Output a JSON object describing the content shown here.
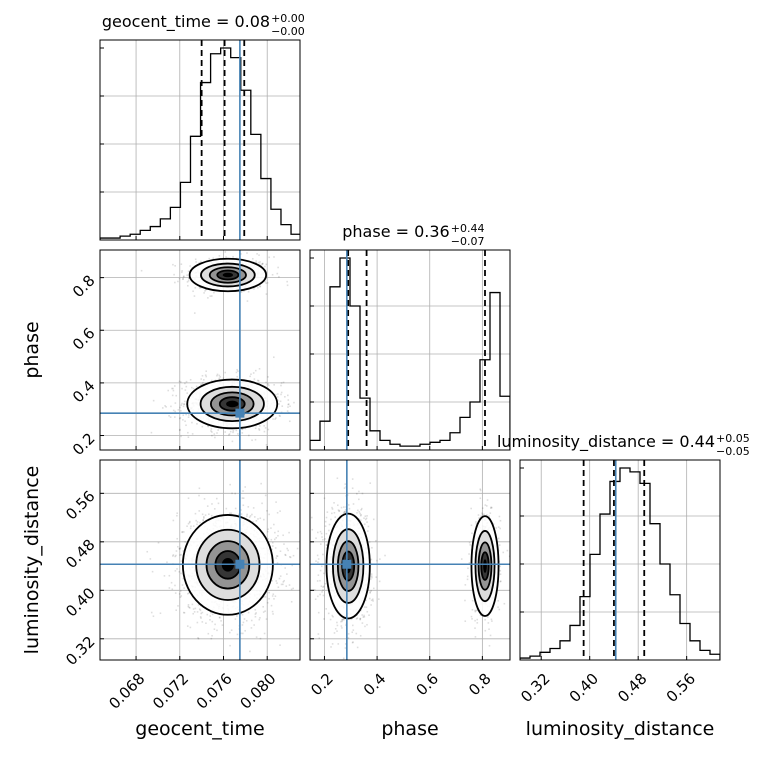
{
  "chart_data": {
    "type": "corner",
    "parameters": [
      "geocent_time",
      "phase",
      "luminosity_distance"
    ],
    "truth_color": "#4682b4",
    "truths": {
      "geocent_time": 0.0775,
      "phase": 0.285,
      "luminosity_distance": 0.443
    },
    "ranges": {
      "geocent_time": [
        0.0647,
        0.083
      ],
      "phase": [
        0.145,
        0.905
      ],
      "luminosity_distance": [
        0.285,
        0.615
      ]
    },
    "ticks": {
      "geocent_time": [
        "0.068",
        "0.072",
        "0.076",
        "0.080"
      ],
      "phase": [
        "0.2",
        "0.4",
        "0.6",
        "0.8"
      ],
      "luminosity_distance": [
        "0.32",
        "0.40",
        "0.48",
        "0.56"
      ]
    },
    "titles": [
      {
        "param": "geocent_time",
        "label": "geocent_time = 0.08",
        "plus": "+0.00",
        "minus": "−0.00"
      },
      {
        "param": "phase",
        "label": "phase = 0.36",
        "plus": "+0.44",
        "minus": "−0.07"
      },
      {
        "param": "luminosity_distance",
        "label": "luminosity_distance = 0.44",
        "plus": "+0.05",
        "minus": "−0.05"
      }
    ],
    "quantiles": {
      "geocent_time": [
        0.074,
        0.0761,
        0.0779
      ],
      "phase": [
        0.29,
        0.36,
        0.81
      ],
      "luminosity_distance": [
        0.39,
        0.44,
        0.49
      ]
    },
    "histograms": {
      "geocent_time": {
        "start": 0.0647,
        "width": 0.00092,
        "counts": [
          0.01,
          0.01,
          0.02,
          0.03,
          0.05,
          0.07,
          0.11,
          0.17,
          0.3,
          0.54,
          0.82,
          0.97,
          1.0,
          0.95,
          0.78,
          0.55,
          0.32,
          0.16,
          0.08,
          0.03
        ]
      },
      "phase": {
        "start": 0.145,
        "width": 0.038,
        "counts": [
          0.05,
          0.15,
          0.85,
          1.0,
          0.75,
          0.27,
          0.1,
          0.05,
          0.03,
          0.02,
          0.02,
          0.03,
          0.04,
          0.05,
          0.09,
          0.17,
          0.25,
          0.47,
          0.82,
          0.28
        ]
      },
      "luminosity_distance": {
        "start": 0.285,
        "width": 0.0165,
        "counts": [
          0.01,
          0.02,
          0.04,
          0.06,
          0.1,
          0.18,
          0.33,
          0.55,
          0.76,
          0.93,
          1.0,
          0.98,
          0.92,
          0.71,
          0.5,
          0.34,
          0.19,
          0.1,
          0.05,
          0.03
        ]
      }
    },
    "modes_2d": {
      "phase_vs_geocent_time": [
        {
          "x": 0.0764,
          "y": 0.81,
          "sx": 0.0017,
          "sy": 0.03,
          "weight": 0.35
        },
        {
          "x": 0.0768,
          "y": 0.32,
          "sx": 0.002,
          "sy": 0.045,
          "weight": 0.65
        }
      ],
      "luminosity_distance_vs_geocent_time": [
        {
          "x": 0.0764,
          "y": 0.442,
          "sx": 0.002,
          "sy": 0.04,
          "weight": 1.0
        }
      ],
      "luminosity_distance_vs_phase": [
        {
          "x": 0.29,
          "y": 0.44,
          "sx": 0.04,
          "sy": 0.042,
          "weight": 0.65
        },
        {
          "x": 0.81,
          "y": 0.44,
          "sx": 0.025,
          "sy": 0.04,
          "weight": 0.35
        }
      ]
    },
    "grid": true
  }
}
